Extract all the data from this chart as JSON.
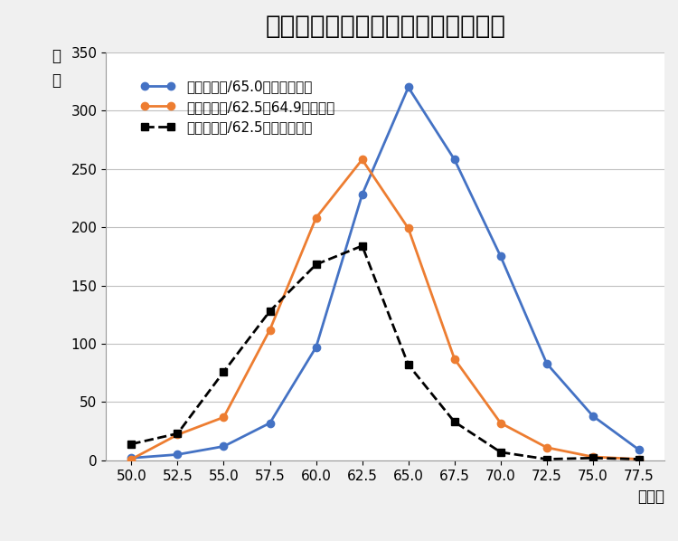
{
  "title": "私立大医学科合格者　レベル別分布",
  "xlabel": "偏差値",
  "ylabel_line1": "人",
  "ylabel_line2": "数",
  "x": [
    50.0,
    52.5,
    55.0,
    57.5,
    60.0,
    62.5,
    65.0,
    67.5,
    70.0,
    72.5,
    75.0,
    77.5
  ],
  "series": [
    {
      "label": "合格者平均/65.0以上の大学郡",
      "y": [
        2,
        5,
        12,
        32,
        97,
        228,
        320,
        258,
        175,
        83,
        38,
        9
      ],
      "color": "#4472C4",
      "marker": "o",
      "linestyle": "-",
      "linewidth": 2.0
    },
    {
      "label": "合格者平均/62.5～64.9の大学郡",
      "y": [
        1,
        22,
        37,
        112,
        208,
        258,
        199,
        87,
        32,
        11,
        3,
        1
      ],
      "color": "#ED7D31",
      "marker": "o",
      "linestyle": "-",
      "linewidth": 2.0
    },
    {
      "label": "合格者平均/62.5未満の大学群",
      "y": [
        14,
        23,
        76,
        128,
        168,
        184,
        82,
        33,
        7,
        1,
        2,
        1
      ],
      "color": "#000000",
      "marker": "s",
      "linestyle": "--",
      "linewidth": 2.0
    }
  ],
  "ylim": [
    0,
    350
  ],
  "yticks": [
    0,
    50,
    100,
    150,
    200,
    250,
    300,
    350
  ],
  "background_color": "#F0F0F0",
  "plot_background_color": "#FFFFFF",
  "grid_color": "#C0C0C0",
  "title_fontsize": 20,
  "label_fontsize": 12,
  "legend_fontsize": 11,
  "tick_fontsize": 11
}
